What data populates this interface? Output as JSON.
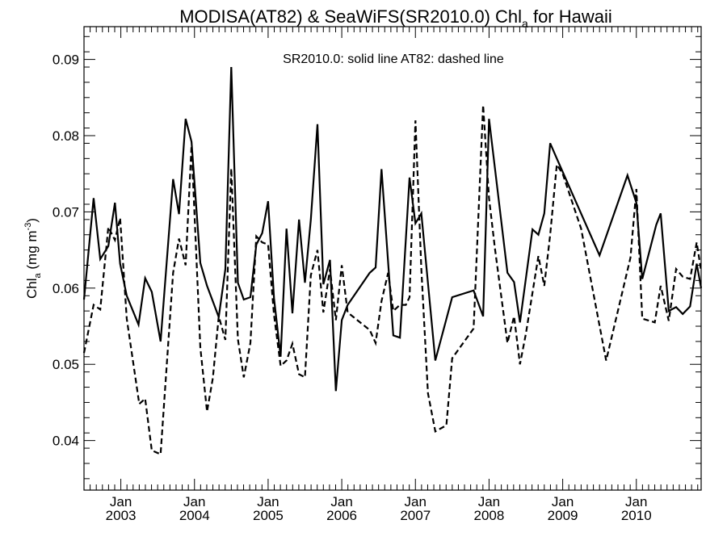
{
  "chart_data": {
    "type": "line",
    "title": {
      "main": "MODISA(AT82) & SeaWiFS(SR2010.0)  Chl",
      "sub": "a",
      "tail": " for Hawaii"
    },
    "legend_text": "SR2010.0: solid line   AT82: dashed line",
    "ylabel": {
      "main": "Chl",
      "sub": "a",
      "unit_pre": " (mg m",
      "unit_sup": "-3",
      "unit_post": ")"
    },
    "ylim": [
      0.0335,
      0.0943
    ],
    "xlim": [
      2002.5,
      2010.88
    ],
    "yticks": [
      0.04,
      0.05,
      0.06,
      0.07,
      0.08,
      0.09
    ],
    "ytick_labels": [
      "0.04",
      "0.05",
      "0.06",
      "0.07",
      "0.08",
      "0.09"
    ],
    "xticks": [
      2003,
      2004,
      2005,
      2006,
      2007,
      2008,
      2009,
      2010
    ],
    "xtick_month": "Jan",
    "xtick_years": [
      "2003",
      "2004",
      "2005",
      "2006",
      "2007",
      "2008",
      "2009",
      "2010"
    ],
    "grid": false,
    "legend_position": "top-center",
    "series": [
      {
        "name": "SR2010.0",
        "style": "solid",
        "color": "#000000",
        "x": [
          2002.5,
          2002.63,
          2002.72,
          2002.83,
          2002.92,
          2002.99,
          2003.08,
          2003.24,
          2003.33,
          2003.42,
          2003.54,
          2003.71,
          2003.79,
          2003.88,
          2003.96,
          2004.08,
          2004.17,
          2004.33,
          2004.42,
          2004.5,
          2004.59,
          2004.67,
          2004.76,
          2004.84,
          2004.92,
          2005.0,
          2005.08,
          2005.17,
          2005.25,
          2005.33,
          2005.42,
          2005.5,
          2005.58,
          2005.67,
          2005.75,
          2005.84,
          2005.92,
          2006.0,
          2006.08,
          2006.38,
          2006.46,
          2006.54,
          2006.7,
          2006.79,
          2006.92,
          2007.0,
          2007.08,
          2007.27,
          2007.5,
          2007.79,
          2007.92,
          2008.0,
          2008.25,
          2008.34,
          2008.42,
          2008.59,
          2008.67,
          2008.75,
          2008.83,
          2008.92,
          2009.5,
          2009.88,
          2010.0,
          2010.08,
          2010.27,
          2010.33,
          2010.44,
          2010.54,
          2010.63,
          2010.73,
          2010.82,
          2010.88
        ],
        "y": [
          0.0585,
          0.0718,
          0.0638,
          0.0655,
          0.0712,
          0.0632,
          0.059,
          0.0552,
          0.0613,
          0.0595,
          0.053,
          0.0743,
          0.0697,
          0.0822,
          0.0792,
          0.0633,
          0.0603,
          0.0562,
          0.0625,
          0.089,
          0.0607,
          0.0585,
          0.0588,
          0.0657,
          0.0672,
          0.0714,
          0.0587,
          0.051,
          0.0678,
          0.0567,
          0.069,
          0.0607,
          0.069,
          0.0815,
          0.0605,
          0.0637,
          0.0465,
          0.0558,
          0.0578,
          0.062,
          0.0627,
          0.0756,
          0.0538,
          0.0535,
          0.0745,
          0.0685,
          0.0698,
          0.0505,
          0.0588,
          0.0597,
          0.0563,
          0.0822,
          0.062,
          0.0608,
          0.0555,
          0.0677,
          0.067,
          0.0698,
          0.079,
          0.077,
          0.0643,
          0.0748,
          0.0712,
          0.0612,
          0.0683,
          0.0698,
          0.057,
          0.0575,
          0.0566,
          0.0576,
          0.0632,
          0.06
        ]
      },
      {
        "name": "AT82",
        "style": "dashed",
        "color": "#000000",
        "x": [
          2002.5,
          2002.63,
          2002.72,
          2002.83,
          2002.92,
          2002.99,
          2003.08,
          2003.25,
          2003.33,
          2003.42,
          2003.54,
          2003.71,
          2003.79,
          2003.88,
          2003.96,
          2004.08,
          2004.17,
          2004.25,
          2004.33,
          2004.42,
          2004.5,
          2004.59,
          2004.67,
          2004.76,
          2004.84,
          2004.92,
          2005.0,
          2005.08,
          2005.17,
          2005.25,
          2005.33,
          2005.42,
          2005.5,
          2005.58,
          2005.67,
          2005.75,
          2005.84,
          2005.92,
          2006.0,
          2006.08,
          2006.38,
          2006.46,
          2006.54,
          2006.63,
          2006.7,
          2006.79,
          2006.87,
          2006.92,
          2007.0,
          2007.08,
          2007.17,
          2007.27,
          2007.42,
          2007.5,
          2007.79,
          2007.92,
          2008.0,
          2008.08,
          2008.25,
          2008.34,
          2008.42,
          2008.5,
          2008.67,
          2008.75,
          2008.83,
          2008.92,
          2009.0,
          2009.25,
          2009.59,
          2009.92,
          2010.0,
          2010.08,
          2010.25,
          2010.33,
          2010.44,
          2010.54,
          2010.63,
          2010.73,
          2010.82,
          2010.88
        ],
        "y": [
          0.0515,
          0.0578,
          0.0572,
          0.068,
          0.0663,
          0.0692,
          0.056,
          0.0448,
          0.0455,
          0.0387,
          0.0382,
          0.062,
          0.0665,
          0.063,
          0.0787,
          0.0522,
          0.0438,
          0.0482,
          0.0563,
          0.0532,
          0.0757,
          0.0533,
          0.0483,
          0.0528,
          0.0668,
          0.066,
          0.0657,
          0.0565,
          0.0498,
          0.0505,
          0.0527,
          0.0487,
          0.0483,
          0.0617,
          0.065,
          0.0568,
          0.0625,
          0.0558,
          0.063,
          0.0568,
          0.0545,
          0.0528,
          0.0583,
          0.062,
          0.057,
          0.0578,
          0.0578,
          0.0588,
          0.082,
          0.0625,
          0.0462,
          0.0412,
          0.042,
          0.0508,
          0.0547,
          0.084,
          0.0718,
          0.0652,
          0.0528,
          0.0563,
          0.05,
          0.054,
          0.0642,
          0.0603,
          0.067,
          0.0762,
          0.075,
          0.0678,
          0.0505,
          0.064,
          0.073,
          0.056,
          0.0555,
          0.0603,
          0.0557,
          0.0625,
          0.0615,
          0.0612,
          0.066,
          0.0622
        ]
      }
    ]
  }
}
